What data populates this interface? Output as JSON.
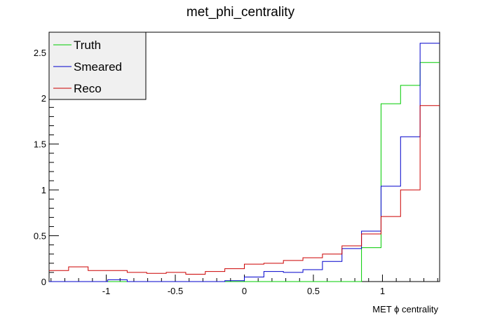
{
  "chart_data": {
    "type": "histogram-step",
    "title": "met_phi_centrality",
    "xlabel": "MET ϕ centrality",
    "ylabel": "",
    "xlim": [
      -1.414,
      1.414
    ],
    "ylim": [
      0,
      2.72
    ],
    "x_ticks": [
      -1,
      -0.5,
      0,
      0.5,
      1
    ],
    "x_tick_labels": [
      "-1",
      "-0.5",
      "0",
      "0.5",
      "1"
    ],
    "y_ticks": [
      0,
      0.5,
      1,
      1.5,
      2,
      2.5
    ],
    "y_tick_labels": [
      "0",
      "0.5",
      "1",
      "1.5",
      "2",
      "2.5"
    ],
    "grid": false,
    "legend_placement": "top-left",
    "bin_edges": [
      -1.414,
      -1.2726,
      -1.1312,
      -0.9898,
      -0.8484,
      -0.707,
      -0.5656,
      -0.4242,
      -0.2828,
      -0.1414,
      0.0,
      0.1414,
      0.2828,
      0.4242,
      0.5656,
      0.707,
      0.8484,
      0.9898,
      1.1312,
      1.2726,
      1.414
    ],
    "series": [
      {
        "name": "Truth",
        "color": "#00cc00",
        "values": [
          0,
          0,
          0,
          0,
          0,
          0,
          0,
          0,
          0,
          0,
          0,
          0,
          0,
          0,
          0,
          0,
          0.37,
          1.94,
          2.14,
          2.39
        ]
      },
      {
        "name": "Smeared",
        "color": "#0000cc",
        "values": [
          0,
          0,
          0,
          0.02,
          0,
          0,
          0,
          0,
          0,
          0.01,
          0.05,
          0.11,
          0.1,
          0.13,
          0.22,
          0.36,
          0.55,
          1.04,
          1.58,
          2.6
        ]
      },
      {
        "name": "Reco",
        "color": "#cc0000",
        "values": [
          0.12,
          0.16,
          0.12,
          0.12,
          0.1,
          0.09,
          0.1,
          0.08,
          0.11,
          0.14,
          0.19,
          0.2,
          0.23,
          0.26,
          0.3,
          0.39,
          0.52,
          0.71,
          1.0,
          1.92
        ]
      }
    ]
  }
}
